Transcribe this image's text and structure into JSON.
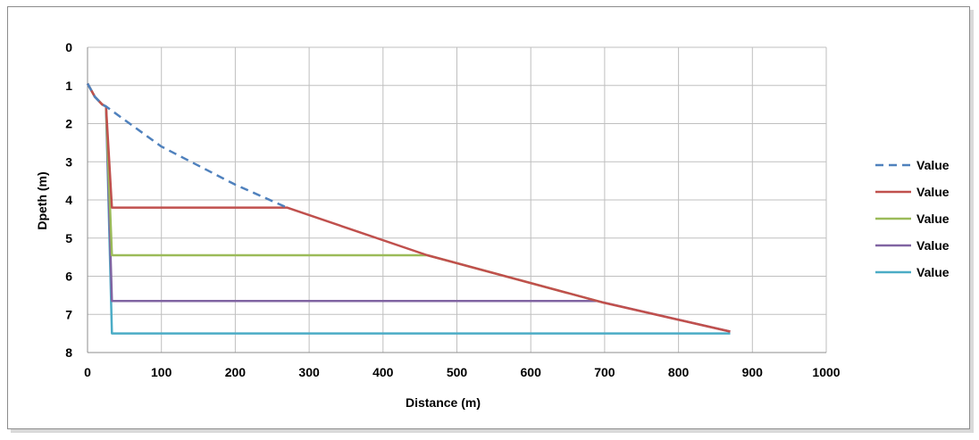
{
  "chart_data": {
    "type": "line",
    "xlabel": "Distance (m)",
    "ylabel": "Dpeth (m)",
    "xlim": [
      0,
      1000
    ],
    "ylim": [
      0,
      8
    ],
    "y_inverted": true,
    "xticks": [
      0,
      100,
      200,
      300,
      400,
      500,
      600,
      700,
      800,
      900,
      1000
    ],
    "yticks": [
      0,
      1,
      2,
      3,
      4,
      5,
      6,
      7,
      8
    ],
    "grid": true,
    "legend_position": "right",
    "series": [
      {
        "name": "Value",
        "color": "#4f81bd",
        "dashed": true,
        "x": [
          0,
          10,
          20,
          25,
          100,
          200,
          270
        ],
        "y": [
          0.95,
          1.3,
          1.5,
          1.55,
          2.6,
          3.6,
          4.2
        ]
      },
      {
        "name": "Value",
        "color": "#c0504d",
        "dashed": false,
        "x": [
          0,
          10,
          20,
          25,
          33,
          270,
          460,
          700,
          870
        ],
        "y": [
          0.95,
          1.3,
          1.5,
          1.55,
          4.2,
          4.2,
          5.45,
          6.7,
          7.45
        ]
      },
      {
        "name": "Value",
        "color": "#9bbb59",
        "dashed": false,
        "x": [
          0,
          10,
          20,
          25,
          33,
          460,
          700
        ],
        "y": [
          0.95,
          1.3,
          1.5,
          1.55,
          5.45,
          5.45,
          6.7
        ]
      },
      {
        "name": "Value",
        "color": "#8064a2",
        "dashed": false,
        "x": [
          0,
          10,
          20,
          25,
          33,
          690,
          870
        ],
        "y": [
          0.95,
          1.3,
          1.5,
          1.55,
          6.65,
          6.65,
          7.45
        ]
      },
      {
        "name": "Value",
        "color": "#4bacc6",
        "dashed": false,
        "x": [
          0,
          10,
          20,
          25,
          33,
          870
        ],
        "y": [
          0.95,
          1.3,
          1.5,
          1.55,
          7.5,
          7.5
        ]
      }
    ]
  }
}
